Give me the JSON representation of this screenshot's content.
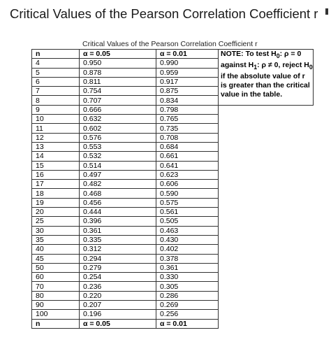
{
  "page": {
    "title": "Critical Values of the Pearson Correlation Coefficient r"
  },
  "table": {
    "caption": "Critical Values of the Pearson Correlation Coefficient r",
    "headers": [
      "n",
      "α = 0.05",
      "α = 0.01"
    ],
    "rows": [
      [
        "4",
        "0.950",
        "0.990"
      ],
      [
        "5",
        "0.878",
        "0.959"
      ],
      [
        "6",
        "0.811",
        "0.917"
      ],
      [
        "7",
        "0.754",
        "0.875"
      ],
      [
        "8",
        "0.707",
        "0.834"
      ],
      [
        "9",
        "0.666",
        "0.798"
      ],
      [
        "10",
        "0.632",
        "0.765"
      ],
      [
        "11",
        "0.602",
        "0.735"
      ],
      [
        "12",
        "0.576",
        "0.708"
      ],
      [
        "13",
        "0.553",
        "0.684"
      ],
      [
        "14",
        "0.532",
        "0.661"
      ],
      [
        "15",
        "0.514",
        "0.641"
      ],
      [
        "16",
        "0.497",
        "0.623"
      ],
      [
        "17",
        "0.482",
        "0.606"
      ],
      [
        "18",
        "0.468",
        "0.590"
      ],
      [
        "19",
        "0.456",
        "0.575"
      ],
      [
        "20",
        "0.444",
        "0.561"
      ],
      [
        "25",
        "0.396",
        "0.505"
      ],
      [
        "30",
        "0.361",
        "0.463"
      ],
      [
        "35",
        "0.335",
        "0.430"
      ],
      [
        "40",
        "0.312",
        "0.402"
      ],
      [
        "45",
        "0.294",
        "0.378"
      ],
      [
        "50",
        "0.279",
        "0.361"
      ],
      [
        "60",
        "0.254",
        "0.330"
      ],
      [
        "70",
        "0.236",
        "0.305"
      ],
      [
        "80",
        "0.220",
        "0.286"
      ],
      [
        "90",
        "0.207",
        "0.269"
      ],
      [
        "100",
        "0.196",
        "0.256"
      ]
    ],
    "footer": [
      "n",
      "α = 0.05",
      "α = 0.01"
    ],
    "note": {
      "line1_pre": "NOTE: To test H",
      "line1_sub": "0",
      "line1_post": ": ρ = 0",
      "line2_pre": "against H",
      "line2_sub": "1",
      "line2_mid": ": ρ ≠ 0, reject H",
      "line2_sub2": "0",
      "line3": "if the absolute value of r is greater than the critical value in the table."
    }
  }
}
